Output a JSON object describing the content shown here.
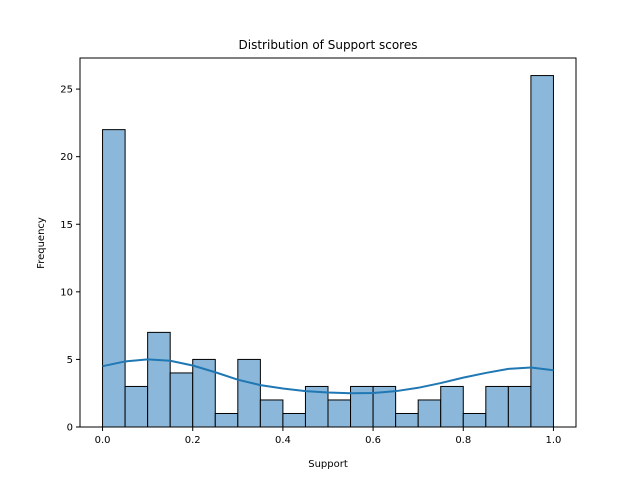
{
  "chart_data": {
    "type": "bar",
    "title": "Distribution of Support scores",
    "xlabel": "Support",
    "ylabel": "Frequency",
    "bin_edges": [
      0.0,
      0.05,
      0.1,
      0.15,
      0.2,
      0.25,
      0.3,
      0.35,
      0.4,
      0.45,
      0.5,
      0.55,
      0.6,
      0.65,
      0.7,
      0.75,
      0.8,
      0.85,
      0.9,
      0.95,
      1.0
    ],
    "values": [
      22,
      3,
      7,
      4,
      5,
      1,
      5,
      2,
      1,
      3,
      2,
      3,
      3,
      1,
      2,
      3,
      1,
      3,
      3,
      26
    ],
    "kde": {
      "x": [
        0.0,
        0.05,
        0.1,
        0.15,
        0.2,
        0.25,
        0.3,
        0.35,
        0.4,
        0.45,
        0.5,
        0.55,
        0.6,
        0.65,
        0.7,
        0.75,
        0.8,
        0.85,
        0.9,
        0.95,
        1.0
      ],
      "y": [
        4.5,
        4.85,
        5.0,
        4.9,
        4.55,
        4.05,
        3.5,
        3.1,
        2.85,
        2.65,
        2.55,
        2.5,
        2.52,
        2.65,
        2.9,
        3.25,
        3.65,
        4.0,
        4.3,
        4.4,
        4.2
      ]
    },
    "xlim": [
      -0.05,
      1.05
    ],
    "ylim": [
      0,
      27.3
    ],
    "xticks": [
      0.0,
      0.2,
      0.4,
      0.6,
      0.8,
      1.0
    ],
    "xtick_labels": [
      "0.0",
      "0.2",
      "0.4",
      "0.6",
      "0.8",
      "1.0"
    ],
    "yticks": [
      0,
      5,
      10,
      15,
      20,
      25
    ],
    "ytick_labels": [
      "0",
      "5",
      "10",
      "15",
      "20",
      "25"
    ],
    "grid": false,
    "colors": {
      "bar_fill": "#8bb8da",
      "bar_edge": "#000000",
      "kde_line": "#1f77b4"
    }
  }
}
